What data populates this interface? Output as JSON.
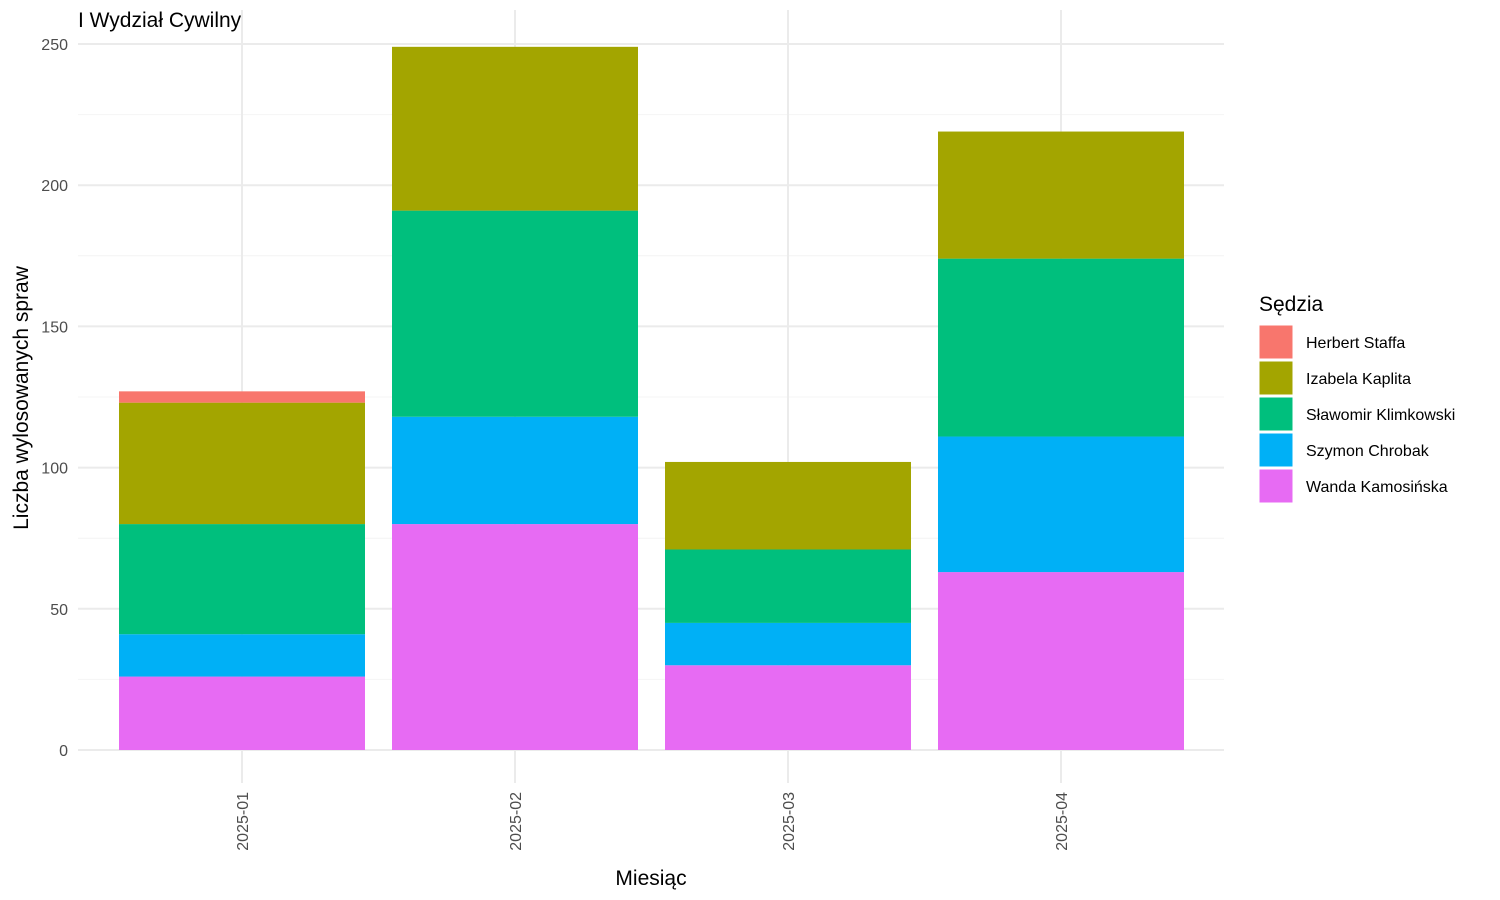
{
  "chart_data": {
    "type": "bar",
    "stacked": true,
    "title": "I Wydział Cywilny",
    "xlabel": "Miesiąc",
    "ylabel": "Liczba wylosowanych spraw",
    "categories": [
      "2025-01",
      "2025-02",
      "2025-03",
      "2025-04"
    ],
    "ylim": [
      0,
      260
    ],
    "yticks": [
      0,
      50,
      100,
      150,
      200,
      250
    ],
    "grid": true,
    "legend": {
      "title": "Sędzia",
      "position": "right"
    },
    "series": [
      {
        "name": "Wanda Kamosińska",
        "color": "#E76BF3",
        "values": [
          26,
          80,
          30,
          63
        ]
      },
      {
        "name": "Szymon Chrobak",
        "color": "#00B0F6",
        "values": [
          15,
          38,
          15,
          48
        ]
      },
      {
        "name": "Sławomir Klimkowski",
        "color": "#00BF7D",
        "values": [
          39,
          73,
          26,
          63
        ]
      },
      {
        "name": "Izabela Kaplita",
        "color": "#A3A500",
        "values": [
          43,
          58,
          31,
          45
        ]
      },
      {
        "name": "Herbert Staffa",
        "color": "#F8766D",
        "values": [
          4,
          0,
          0,
          0
        ]
      }
    ],
    "legend_order": [
      "Herbert Staffa",
      "Izabela Kaplita",
      "Sławomir Klimkowski",
      "Szymon Chrobak",
      "Wanda Kamosińska"
    ]
  }
}
